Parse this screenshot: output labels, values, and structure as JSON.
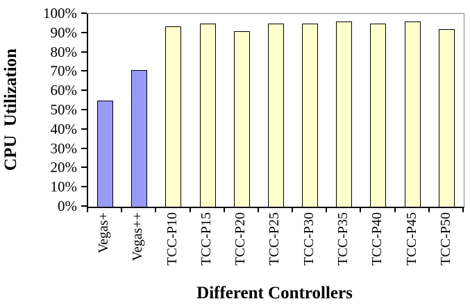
{
  "chart_data": {
    "type": "bar",
    "title": "",
    "xlabel": "Different Controllers",
    "ylabel": "CPU Utilization",
    "categories": [
      "Vegas+",
      "Vegas++",
      "TCC-P10",
      "TCC-P15",
      "TCC-P20",
      "TCC-P25",
      "TCC-P30",
      "TCC-P35",
      "TCC-P40",
      "TCC-P45",
      "TCC-P50"
    ],
    "values": [
      55,
      71,
      93.5,
      95,
      91,
      95,
      95,
      96,
      95,
      96,
      92
    ],
    "ylim": [
      0,
      100
    ],
    "ytick_step": 10,
    "ytick_labels": [
      "0%",
      "10%",
      "20%",
      "30%",
      "40%",
      "50%",
      "60%",
      "70%",
      "80%",
      "90%",
      "100%"
    ],
    "grid": "top-gridline-only",
    "legend": "none",
    "bar_colors": [
      "#9999F8",
      "#9999F8",
      "#FFFFCC",
      "#FFFFCC",
      "#FFFFCC",
      "#FFFFCC",
      "#FFFFCC",
      "#FFFFCC",
      "#FFFFCC",
      "#FFFFCC",
      "#FFFFCC"
    ],
    "colors": {
      "vegas_bar_fill": "#9999F8",
      "tcc_bar_fill": "#FFFFCC",
      "bar_border": "#000000",
      "axis": "#000000",
      "plot_border_and_gridline": "#808080",
      "background": "#FFFFFF"
    }
  }
}
